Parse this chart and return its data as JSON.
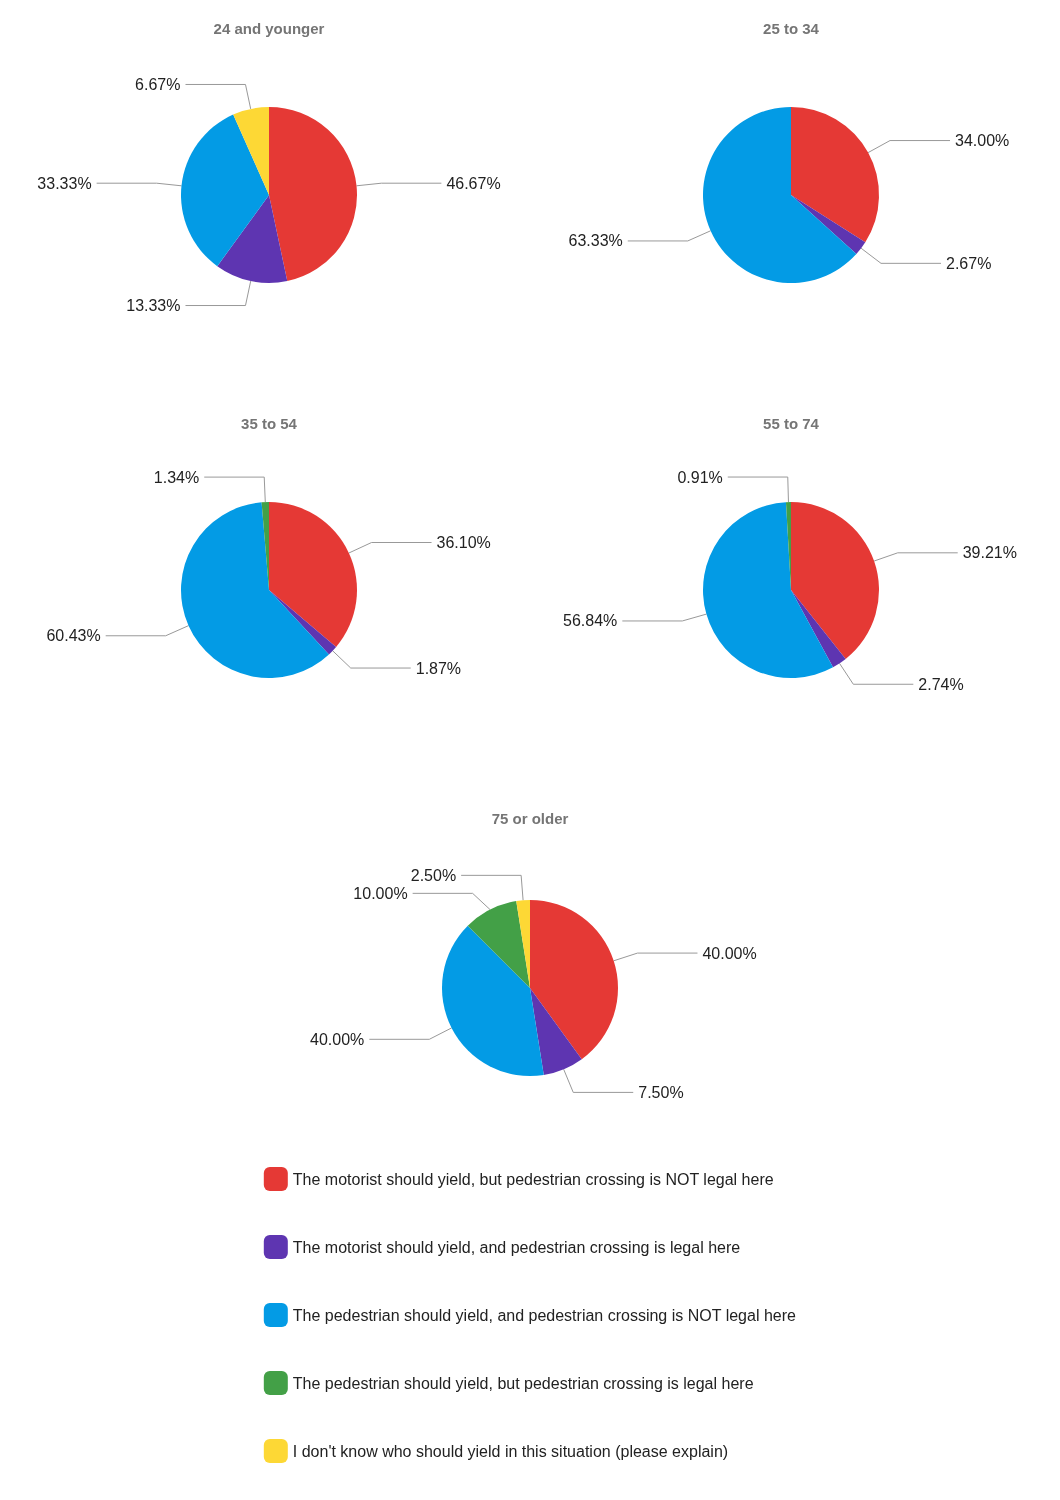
{
  "chart_data": [
    {
      "type": "pie",
      "title": "24 and younger",
      "categories": [
        null,
        null,
        null,
        null
      ],
      "values": [
        46.67,
        13.33,
        33.33,
        6.67
      ],
      "value_labels": [
        "46.67%",
        "13.33%",
        "33.33%",
        "6.67%"
      ],
      "colors": [
        "#e53935",
        "#5e35b1",
        "#039be5",
        "#fdd835"
      ]
    },
    {
      "type": "pie",
      "title": "25 to 34",
      "categories": [
        null,
        null,
        null
      ],
      "values": [
        34.0,
        2.67,
        63.33
      ],
      "value_labels": [
        "34.00%",
        "2.67%",
        "63.33%"
      ],
      "colors": [
        "#e53935",
        "#5e35b1",
        "#039be5"
      ]
    },
    {
      "type": "pie",
      "title": "35 to 54",
      "categories": [
        null,
        null,
        null,
        null
      ],
      "values": [
        36.1,
        1.87,
        60.43,
        1.34
      ],
      "value_labels": [
        "36.10%",
        "1.87%",
        "60.43%",
        "1.34%"
      ],
      "colors": [
        "#e53935",
        "#5e35b1",
        "#039be5",
        "#43a047"
      ]
    },
    {
      "type": "pie",
      "title": "55 to 74",
      "categories": [
        null,
        null,
        null,
        null
      ],
      "values": [
        39.21,
        2.74,
        56.84,
        0.91
      ],
      "value_labels": [
        "39.21%",
        "2.74%",
        "56.84%",
        "0.91%"
      ],
      "colors": [
        "#e53935",
        "#5e35b1",
        "#039be5",
        "#43a047"
      ]
    },
    {
      "type": "pie",
      "title": "75 or older",
      "categories": [
        "The motorist should yield, but pedestrian crossing is NOT legal here",
        "The motorist should yield, and pedestrian crossing is legal here",
        "The pedestrian should yield, and pedestrian crossing is NOT legal here",
        "The pedestrian should yield, but pedestrian crossing is legal here",
        "I don't know who should yield in this situation (please explain)"
      ],
      "values": [
        40.0,
        7.5,
        40.0,
        10.0,
        2.5
      ],
      "value_labels": [
        "40.00%",
        "7.50%",
        "40.00%",
        "10.00%",
        "2.50%"
      ],
      "colors": [
        "#e53935",
        "#5e35b1",
        "#039be5",
        "#43a047",
        "#fdd835"
      ],
      "legend": "bottom"
    }
  ]
}
